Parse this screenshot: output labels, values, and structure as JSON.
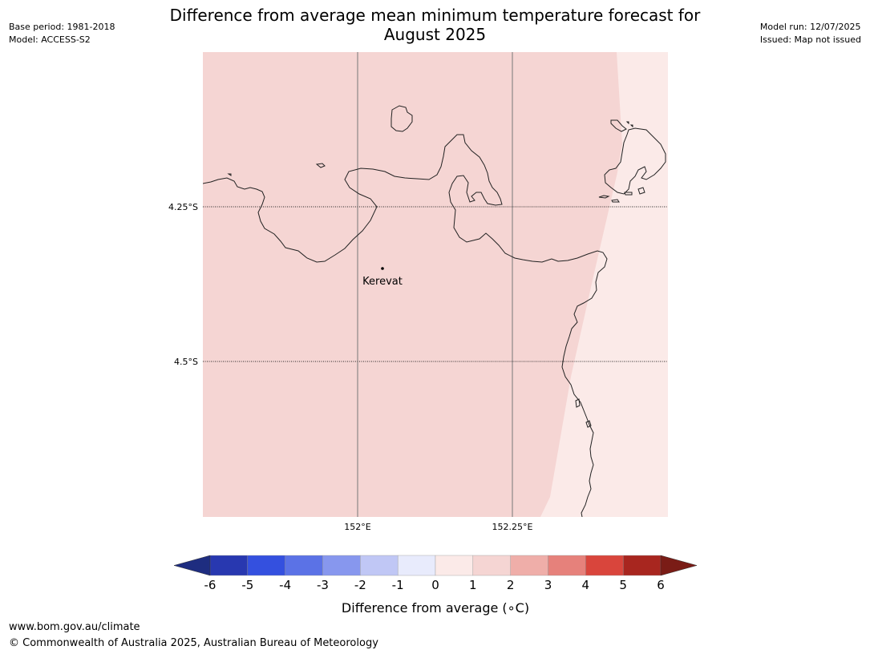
{
  "header": {
    "title_line1": "Difference from average mean minimum temperature forecast for",
    "title_line2": "August 2025",
    "base_period": "Base period: 1981-2018",
    "model": "Model: ACCESS-S2",
    "model_run": "Model run: 12/07/2025",
    "issued": "Issued: Map not issued"
  },
  "map": {
    "region_colors": {
      "anomaly_1_to_2": "#f5d5d3",
      "anomaly_0_to_1": "#fbeae8"
    },
    "gridlines": {
      "longitudes": [
        "152°E",
        "152.25°E"
      ],
      "latitudes": [
        "4.25°S",
        "4.5°S"
      ]
    },
    "places": [
      {
        "name": "Kerevat"
      }
    ]
  },
  "colorbar": {
    "label": "Difference from average (°C)",
    "label_prefix": "Difference from average (",
    "label_unit": "∘C",
    "label_suffix": ")",
    "ticks": [
      "-6",
      "-5",
      "-4",
      "-3",
      "-2",
      "-1",
      "0",
      "1",
      "2",
      "3",
      "4",
      "5",
      "6"
    ],
    "under_color": "#1e2d80",
    "over_color": "#7a1c16",
    "colors": [
      "#2838b0",
      "#3450df",
      "#5b72e6",
      "#8797ee",
      "#c0c7f5",
      "#e8ebfc",
      "#fbeae8",
      "#f5d5d3",
      "#efaea9",
      "#e6817b",
      "#d9453c",
      "#a8261f"
    ]
  },
  "footer": {
    "url": "www.bom.gov.au/climate",
    "copyright": "© Commonwealth of Australia 2025, Australian Bureau of Meteorology"
  }
}
